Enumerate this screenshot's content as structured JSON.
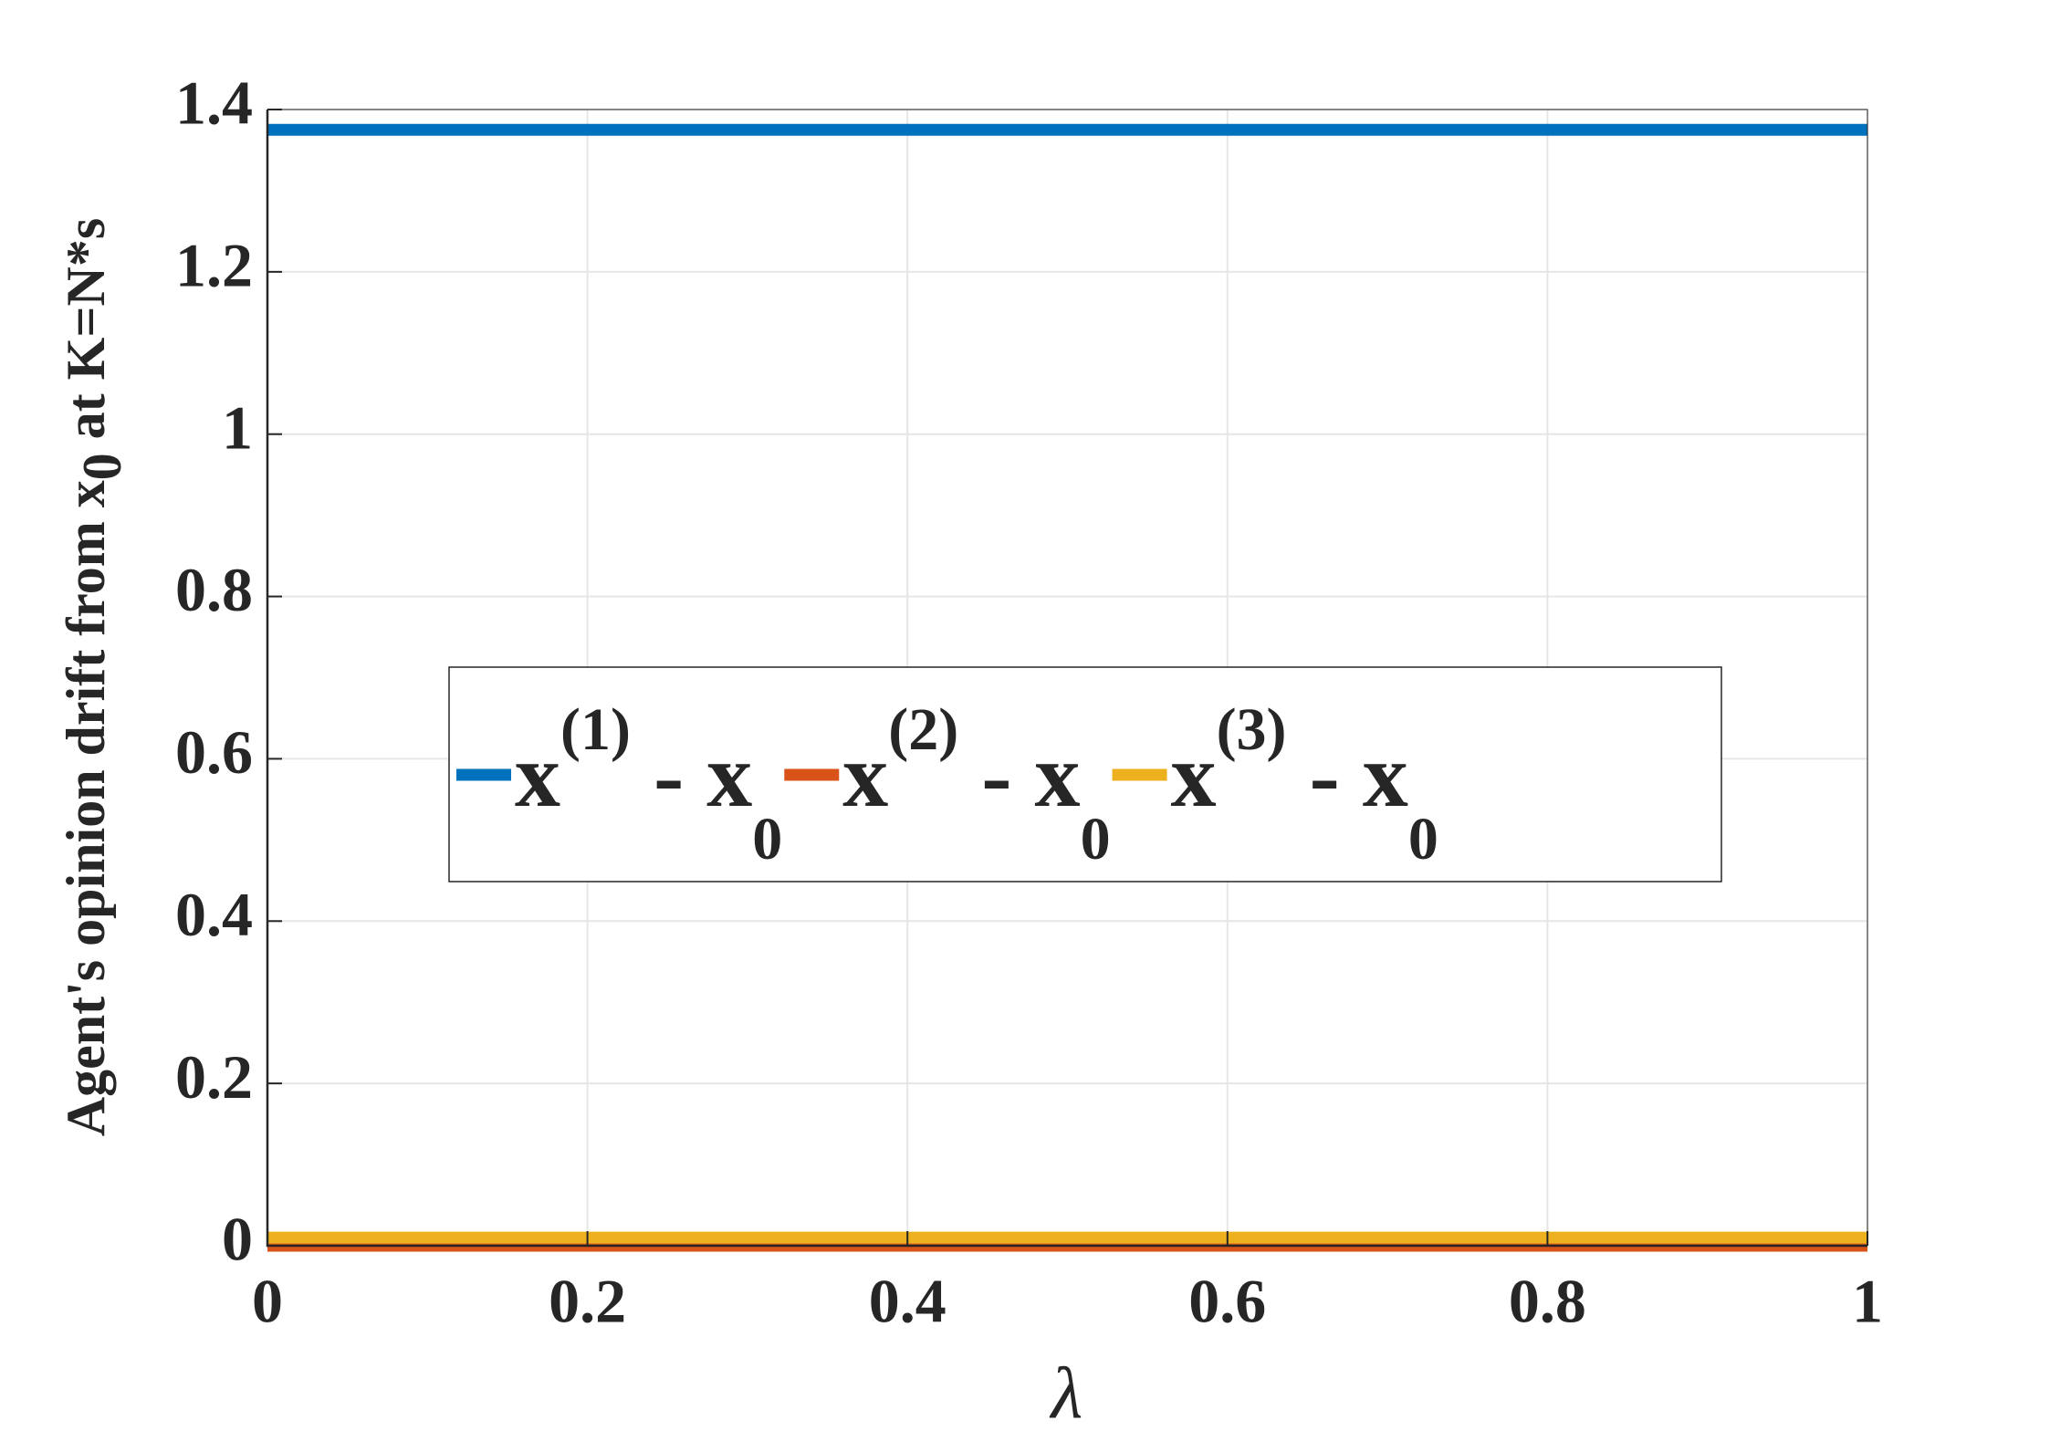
{
  "chart_data": {
    "type": "line",
    "xlabel": "λ",
    "ylabel": "Agent's opinion drift from x0 at K=N*s",
    "x": [
      0,
      1
    ],
    "series": [
      {
        "name": "x(1) - x0",
        "color": "#0072bd",
        "values": [
          1.375,
          1.375
        ]
      },
      {
        "name": "x(2) - x0",
        "color": "#d95319",
        "values": [
          0,
          0
        ]
      },
      {
        "name": "x(3) - x0",
        "color": "#edb120",
        "values": [
          0.01,
          0.01
        ]
      }
    ],
    "xlim": [
      0,
      1
    ],
    "xticks": [
      0,
      0.2,
      0.4,
      0.6,
      0.8,
      1
    ],
    "ylim": [
      0,
      1.4
    ],
    "yticks": [
      0,
      0.2,
      0.4,
      0.6,
      0.8,
      1,
      1.2,
      1.4
    ],
    "grid": true,
    "legend": "center"
  }
}
